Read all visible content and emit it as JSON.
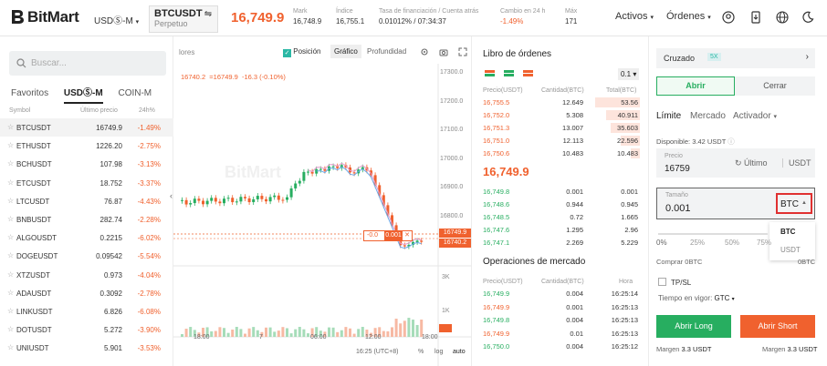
{
  "header": {
    "logo": "BitMart",
    "market_select": "USDⓈ-M",
    "pair": "BTCUSDT",
    "pair_sub": "Perpetuo",
    "last_price": "16,749.9",
    "stats": [
      {
        "k": "Mark",
        "v": "16,748.9"
      },
      {
        "k": "Índice",
        "v": "16,755.1"
      },
      {
        "k": "Tasa de financiación / Cuenta atrás",
        "v": "0.01012% / 07:34:37"
      },
      {
        "k": "Cambio en 24 h",
        "v": "-1.49%"
      },
      {
        "k": "Máx",
        "v": "171"
      }
    ],
    "nav": [
      "Activos",
      "Órdenes"
    ]
  },
  "left": {
    "search_placeholder": "Buscar...",
    "tabs": [
      "Favoritos",
      "USDⓈ-M",
      "COIN-M"
    ],
    "col_symbol": "Symbol",
    "col_price": "Último precio",
    "col_change": "24h%",
    "rows": [
      {
        "s": "BTCUSDT",
        "p": "16749.9",
        "c": "-1.49%"
      },
      {
        "s": "ETHUSDT",
        "p": "1226.20",
        "c": "-2.75%"
      },
      {
        "s": "BCHUSDT",
        "p": "107.98",
        "c": "-3.13%"
      },
      {
        "s": "ETCUSDT",
        "p": "18.752",
        "c": "-3.37%"
      },
      {
        "s": "LTCUSDT",
        "p": "76.87",
        "c": "-4.43%"
      },
      {
        "s": "BNBUSDT",
        "p": "282.74",
        "c": "-2.28%"
      },
      {
        "s": "ALGOUSDT",
        "p": "0.2215",
        "c": "-6.02%"
      },
      {
        "s": "DOGEUSDT",
        "p": "0.09542",
        "c": "-5.54%"
      },
      {
        "s": "XTZUSDT",
        "p": "0.973",
        "c": "-4.04%"
      },
      {
        "s": "ADAUSDT",
        "p": "0.3092",
        "c": "-2.78%"
      },
      {
        "s": "LINKUSDT",
        "p": "6.826",
        "c": "-6.08%"
      },
      {
        "s": "DOTUSDT",
        "p": "5.272",
        "c": "-3.90%"
      },
      {
        "s": "UNIUSDT",
        "p": "5.901",
        "c": "-3.53%"
      }
    ]
  },
  "chart": {
    "left_tab": "lores",
    "pos_label": "Posición",
    "graph_tab": "Gráfico",
    "depth_tab": "Profundidad",
    "ma_line": "16740.2",
    "ma_line2": "=16749.9",
    "ma_delta": "-16.3 (-0.10%)",
    "y_ticks": [
      "17300.0",
      "17200.0",
      "17100.0",
      "17000.0",
      "16900.0",
      "16800.0"
    ],
    "price_tag1": "16749.9",
    "price_tag2": "16740.2",
    "order_tag_a": "-0.0",
    "order_tag_b": "0.001",
    "vol_ticks": [
      "3K",
      "1K"
    ],
    "x_ticks": [
      "18:00",
      "7",
      "06:00",
      "12:00",
      "18:00"
    ],
    "time_label": "16:25 (UTC+8)",
    "pct": "%",
    "log": "log",
    "auto": "auto"
  },
  "orderbook": {
    "title": "Libro de órdenes",
    "step": "0.1",
    "h_price": "Precio(USDT)",
    "h_qty": "Cantidad(BTC)",
    "h_total": "Total(BTC)",
    "asks": [
      {
        "p": "16,755.5",
        "q": "12.649",
        "t": "53.56"
      },
      {
        "p": "16,752.0",
        "q": "5.308",
        "t": "40.911"
      },
      {
        "p": "16,751.3",
        "q": "13.007",
        "t": "35.603"
      },
      {
        "p": "16,751.0",
        "q": "12.113",
        "t": "22.596"
      },
      {
        "p": "16,750.6",
        "q": "10.483",
        "t": "10.483"
      }
    ],
    "mid": "16,749.9",
    "bids": [
      {
        "p": "16,749.8",
        "q": "0.001",
        "t": "0.001"
      },
      {
        "p": "16,748.6",
        "q": "0.944",
        "t": "0.945"
      },
      {
        "p": "16,748.5",
        "q": "0.72",
        "t": "1.665"
      },
      {
        "p": "16,747.6",
        "q": "1.295",
        "t": "2.96"
      },
      {
        "p": "16,747.1",
        "q": "2.269",
        "t": "5.229"
      }
    ],
    "trades_title": "Operaciones de mercado",
    "th_price": "Precio(USDT)",
    "th_qty": "Cantidad(BTC)",
    "th_time": "Hora",
    "trades": [
      {
        "p": "16,749.9",
        "q": "0.004",
        "t": "16:25:14",
        "c": "g"
      },
      {
        "p": "16,749.9",
        "q": "0.001",
        "t": "16:25:13",
        "c": "r"
      },
      {
        "p": "16,749.8",
        "q": "0.004",
        "t": "16:25:13",
        "c": "g"
      },
      {
        "p": "16,749.9",
        "q": "0.01",
        "t": "16:25:13",
        "c": "r"
      },
      {
        "p": "16,750.0",
        "q": "0.004",
        "t": "16:25:12",
        "c": "g"
      }
    ]
  },
  "trade": {
    "margin_mode": "Cruzado",
    "leverage": "5X",
    "open": "Abrir",
    "close": "Cerrar",
    "type_limit": "Límite",
    "type_market": "Mercado",
    "type_trigger": "Activador",
    "available": "Disponible: 3.42 USDT",
    "price_label": "Precio",
    "price_value": "16759",
    "last_btn": "Último",
    "price_unit": "USDT",
    "size_label": "Tamaño",
    "size_value": "0.001",
    "unit_selected": "BTC",
    "unit_options": [
      "BTC",
      "USDT"
    ],
    "slider_marks": [
      "0%",
      "25%",
      "50%",
      "75%"
    ],
    "buy_label": "Comprar",
    "buy_value": "0BTC",
    "sell_value": "0BTC",
    "tpsl": "TP/SL",
    "tif_label": "Tiempo en vigor:",
    "tif_value": "GTC",
    "long_btn": "Abrir Long",
    "short_btn": "Abrir Short",
    "margin_long": "3.3 USDT",
    "margin_short": "3.3 USDT",
    "margin_label": "Margen"
  },
  "colors": {
    "accent": "#f0612e",
    "green": "#27ae60",
    "border_red": "#e03030"
  }
}
